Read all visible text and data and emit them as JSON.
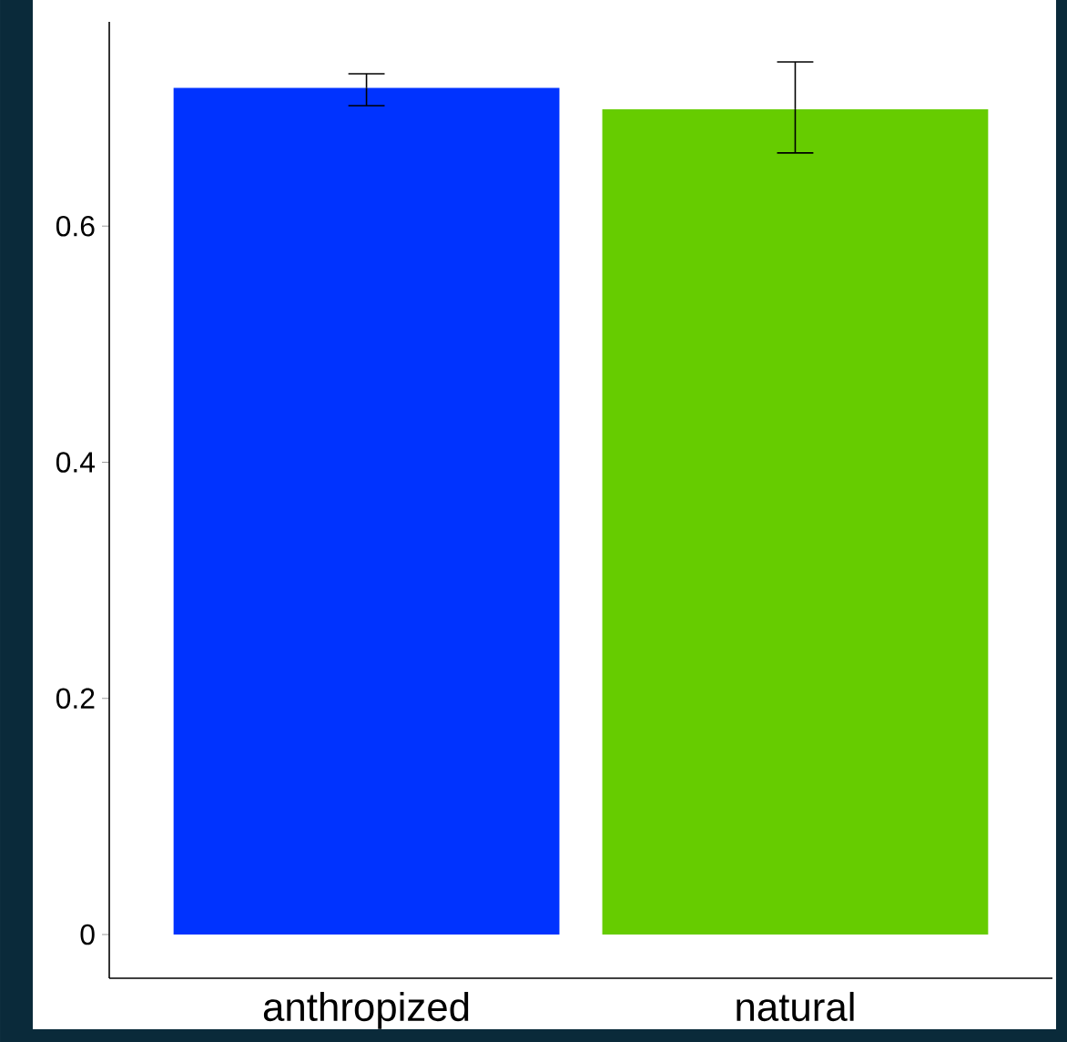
{
  "chart_data": {
    "type": "bar",
    "categories": [
      "anthropized",
      "natural"
    ],
    "values": [
      0.717,
      0.699
    ],
    "colors": [
      "#0033ff",
      "#66cc00"
    ],
    "errors": [
      [
        0.702,
        0.729
      ],
      [
        0.662,
        0.739
      ]
    ],
    "ylim": [
      -0.037,
      0.773
    ],
    "yticks": [
      0,
      0.2,
      0.4,
      0.6
    ],
    "grid": false
  }
}
